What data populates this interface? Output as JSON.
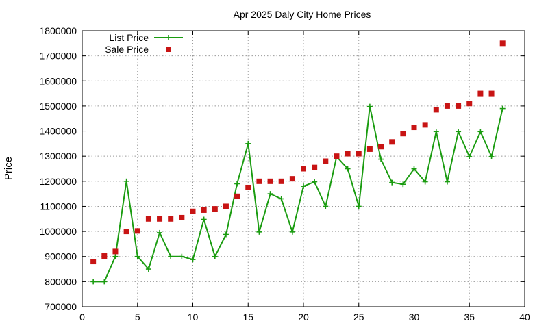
{
  "chart_data": {
    "type": "line",
    "title": "Apr 2025 Daly City Home Prices",
    "xlabel": "",
    "ylabel": "Price",
    "xlim": [
      0,
      40
    ],
    "ylim": [
      700000,
      1800000
    ],
    "xticks": [
      0,
      5,
      10,
      15,
      20,
      25,
      30,
      35,
      40
    ],
    "yticks": [
      700000,
      800000,
      900000,
      1000000,
      1100000,
      1200000,
      1300000,
      1400000,
      1500000,
      1600000,
      1700000,
      1800000
    ],
    "grid": true,
    "legend_position": "top-left",
    "series": [
      {
        "name": "List Price",
        "style": "line-with-plus-markers",
        "color": "#1a9c10",
        "x": [
          1,
          2,
          3,
          4,
          5,
          6,
          7,
          8,
          9,
          10,
          11,
          12,
          13,
          14,
          15,
          16,
          17,
          18,
          19,
          20,
          21,
          22,
          23,
          24,
          25,
          26,
          27,
          28,
          29,
          30,
          31,
          32,
          33,
          34,
          35,
          36,
          37,
          38
        ],
        "y": [
          800000,
          800000,
          900000,
          1200000,
          900000,
          850000,
          995000,
          900000,
          900000,
          888000,
          1048000,
          900000,
          988000,
          1190000,
          1350000,
          998000,
          1150000,
          1130000,
          998000,
          1180000,
          1198000,
          1100000,
          1298000,
          1250000,
          1100000,
          1498000,
          1288000,
          1195000,
          1188000,
          1250000,
          1198000,
          1398000,
          1198000,
          1398000,
          1298000,
          1398000,
          1298000,
          1490000
        ]
      },
      {
        "name": "Sale Price",
        "style": "square-points",
        "color": "#c81414",
        "x": [
          1,
          2,
          3,
          4,
          5,
          6,
          7,
          8,
          9,
          10,
          11,
          12,
          13,
          14,
          15,
          16,
          17,
          18,
          19,
          20,
          21,
          22,
          23,
          24,
          25,
          26,
          27,
          28,
          29,
          30,
          31,
          32,
          33,
          34,
          35,
          36,
          37,
          38
        ],
        "y": [
          880000,
          902000,
          920000,
          1000000,
          1002000,
          1050000,
          1050000,
          1050000,
          1055000,
          1080000,
          1085000,
          1090000,
          1100000,
          1140000,
          1175000,
          1200000,
          1200000,
          1200000,
          1210000,
          1250000,
          1255000,
          1280000,
          1300000,
          1310000,
          1310000,
          1328000,
          1338000,
          1357000,
          1390000,
          1415000,
          1425000,
          1485000,
          1500000,
          1500000,
          1510000,
          1550000,
          1550000,
          1750000
        ]
      }
    ]
  }
}
